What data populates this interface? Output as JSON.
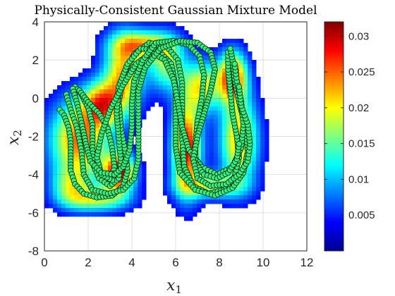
{
  "chart_data": {
    "type": "scatter",
    "title": "Physically-Consistent Gaussian Mixture Model",
    "xlabel": "x",
    "xlabel_sub": "1",
    "ylabel": "x",
    "ylabel_sub": "2",
    "xlim": [
      0,
      12
    ],
    "ylim": [
      -8,
      4
    ],
    "xticks": [
      "0",
      "2",
      "4",
      "6",
      "8",
      "10",
      "12"
    ],
    "yticks": [
      "4",
      "2",
      "0",
      "-2",
      "-4",
      "-6",
      "-8"
    ],
    "grid": true,
    "colormap": "jet",
    "colorbar": {
      "range": [
        0,
        0.032
      ],
      "ticks": [
        "0.005",
        "0.01",
        "0.015",
        "0.02",
        "0.025",
        "0.03"
      ]
    },
    "density_components": [
      {
        "mx": 1.6,
        "my": -2.2,
        "sx": 0.9,
        "sy": 1.4,
        "w": 0.8
      },
      {
        "mx": 2.6,
        "my": -0.3,
        "sx": 0.6,
        "sy": 0.8,
        "w": 0.7
      },
      {
        "mx": 3.4,
        "my": -3.9,
        "sx": 0.5,
        "sy": 0.7,
        "w": 1.0
      },
      {
        "mx": 2.4,
        "my": -5.3,
        "sx": 1.0,
        "sy": 0.45,
        "w": 0.5
      },
      {
        "mx": 3.6,
        "my": 1.2,
        "sx": 0.6,
        "sy": 1.4,
        "w": 0.7
      },
      {
        "mx": 4.5,
        "my": 2.8,
        "sx": 0.9,
        "sy": 0.5,
        "w": 0.6
      },
      {
        "mx": 5.6,
        "my": 1.8,
        "sx": 0.6,
        "sy": 1.0,
        "w": 0.5
      },
      {
        "mx": 6.5,
        "my": -2.6,
        "sx": 0.45,
        "sy": 1.6,
        "w": 0.95
      },
      {
        "mx": 7.2,
        "my": 0.6,
        "sx": 0.6,
        "sy": 0.9,
        "w": 0.6
      },
      {
        "mx": 7.6,
        "my": -4.6,
        "sx": 1.0,
        "sy": 0.45,
        "w": 0.5
      },
      {
        "mx": 8.6,
        "my": 1.1,
        "sx": 0.45,
        "sy": 0.9,
        "w": 0.9
      },
      {
        "mx": 8.9,
        "my": -2.2,
        "sx": 0.6,
        "sy": 1.6,
        "w": 0.7
      },
      {
        "mx": 1.2,
        "my": -4.6,
        "sx": 0.6,
        "sy": 0.7,
        "w": 0.4
      }
    ],
    "series": [
      {
        "points": [
          [
            0.7,
            -0.6
          ],
          [
            0.9,
            -0.9
          ],
          [
            1.1,
            -1.5
          ],
          [
            1.2,
            -2.2
          ],
          [
            1.2,
            -3.0
          ],
          [
            1.2,
            -3.8
          ],
          [
            1.4,
            -4.5
          ],
          [
            1.8,
            -5.0
          ],
          [
            2.4,
            -5.2
          ],
          [
            3.1,
            -5.1
          ],
          [
            3.6,
            -4.6
          ],
          [
            3.8,
            -3.8
          ],
          [
            3.7,
            -2.8
          ],
          [
            3.5,
            -1.6
          ],
          [
            3.4,
            -0.2
          ],
          [
            3.6,
            1.2
          ],
          [
            4.1,
            2.3
          ],
          [
            4.8,
            2.9
          ],
          [
            5.6,
            2.7
          ],
          [
            6.1,
            2.0
          ],
          [
            6.3,
            0.8
          ],
          [
            6.3,
            -0.7
          ],
          [
            6.3,
            -2.2
          ],
          [
            6.4,
            -3.6
          ],
          [
            6.8,
            -4.6
          ],
          [
            7.5,
            -5.0
          ],
          [
            8.2,
            -4.8
          ],
          [
            8.7,
            -4.1
          ],
          [
            8.9,
            -3.1
          ],
          [
            8.8,
            -2.0
          ],
          [
            8.6,
            -0.8
          ],
          [
            8.5,
            0.4
          ],
          [
            8.4,
            1.5
          ],
          [
            8.4,
            2.4
          ]
        ]
      },
      {
        "points": [
          [
            1.4,
            0.6
          ],
          [
            1.7,
            0.2
          ],
          [
            2.0,
            -0.5
          ],
          [
            2.2,
            -1.4
          ],
          [
            2.2,
            -2.4
          ],
          [
            2.2,
            -3.4
          ],
          [
            2.5,
            -4.2
          ],
          [
            3.0,
            -4.6
          ],
          [
            3.4,
            -4.2
          ],
          [
            3.5,
            -3.3
          ],
          [
            3.4,
            -2.1
          ],
          [
            3.3,
            -0.8
          ],
          [
            3.4,
            0.6
          ],
          [
            3.8,
            1.8
          ],
          [
            4.4,
            2.6
          ],
          [
            5.2,
            2.5
          ],
          [
            5.8,
            1.8
          ],
          [
            6.0,
            0.6
          ],
          [
            6.0,
            -0.9
          ],
          [
            6.0,
            -2.5
          ],
          [
            6.2,
            -3.9
          ],
          [
            6.9,
            -4.8
          ],
          [
            7.8,
            -5.1
          ],
          [
            8.6,
            -4.7
          ],
          [
            9.1,
            -3.9
          ],
          [
            9.3,
            -2.8
          ],
          [
            9.2,
            -1.5
          ],
          [
            8.9,
            -0.2
          ],
          [
            8.7,
            1.0
          ],
          [
            8.6,
            2.0
          ],
          [
            8.5,
            2.6
          ]
        ]
      },
      {
        "points": [
          [
            1.6,
            0.4
          ],
          [
            2.0,
            -0.2
          ],
          [
            2.5,
            -0.8
          ],
          [
            2.9,
            -1.6
          ],
          [
            3.1,
            -2.6
          ],
          [
            3.2,
            -3.6
          ],
          [
            3.1,
            -4.3
          ],
          [
            2.6,
            -4.0
          ],
          [
            2.4,
            -3.1
          ],
          [
            2.6,
            -1.9
          ],
          [
            3.0,
            -0.6
          ],
          [
            3.6,
            0.7
          ],
          [
            4.2,
            1.8
          ],
          [
            4.9,
            2.4
          ],
          [
            5.5,
            2.0
          ],
          [
            5.9,
            1.0
          ],
          [
            6.1,
            -0.2
          ],
          [
            6.3,
            -1.5
          ],
          [
            6.6,
            -2.7
          ],
          [
            7.2,
            -3.6
          ],
          [
            7.9,
            -4.0
          ],
          [
            8.6,
            -3.6
          ],
          [
            9.0,
            -2.6
          ],
          [
            9.1,
            -1.4
          ],
          [
            9.0,
            -0.2
          ],
          [
            8.8,
            0.9
          ],
          [
            8.7,
            1.8
          ]
        ]
      },
      {
        "points": [
          [
            1.3,
            0.5
          ],
          [
            1.5,
            -0.3
          ],
          [
            1.7,
            -1.3
          ],
          [
            1.9,
            -2.4
          ],
          [
            2.1,
            -3.3
          ],
          [
            2.6,
            -3.9
          ],
          [
            3.2,
            -4.0
          ],
          [
            3.6,
            -3.6
          ],
          [
            3.9,
            -2.7
          ],
          [
            4.0,
            -1.5
          ],
          [
            4.0,
            -0.3
          ],
          [
            4.1,
            0.9
          ],
          [
            4.5,
            2.0
          ],
          [
            5.1,
            2.9
          ],
          [
            5.9,
            3.0
          ],
          [
            6.6,
            2.8
          ],
          [
            7.1,
            2.2
          ],
          [
            7.3,
            1.2
          ],
          [
            7.2,
            0.0
          ],
          [
            7.0,
            -1.2
          ],
          [
            6.9,
            -2.4
          ],
          [
            6.9,
            -3.4
          ],
          [
            7.3,
            -4.0
          ],
          [
            7.9,
            -4.2
          ],
          [
            8.4,
            -3.9
          ],
          [
            8.8,
            -3.2
          ],
          [
            8.9,
            -2.4
          ]
        ]
      },
      {
        "points": [
          [
            1.0,
            0.2
          ],
          [
            1.2,
            -0.6
          ],
          [
            1.5,
            -1.6
          ],
          [
            1.7,
            -2.8
          ],
          [
            1.8,
            -4.0
          ],
          [
            2.2,
            -4.8
          ],
          [
            2.9,
            -5.0
          ],
          [
            3.6,
            -4.8
          ],
          [
            4.1,
            -4.2
          ],
          [
            4.3,
            -3.2
          ],
          [
            4.3,
            -2.0
          ],
          [
            4.3,
            -0.8
          ],
          [
            4.3,
            0.4
          ],
          [
            4.6,
            1.6
          ],
          [
            5.3,
            2.6
          ],
          [
            6.2,
            3.0
          ],
          [
            7.0,
            2.9
          ],
          [
            7.6,
            2.4
          ],
          [
            7.8,
            1.5
          ],
          [
            7.6,
            0.4
          ],
          [
            7.3,
            -0.8
          ],
          [
            7.0,
            -2.0
          ],
          [
            6.8,
            -3.2
          ],
          [
            7.0,
            -4.2
          ],
          [
            7.6,
            -4.6
          ],
          [
            8.3,
            -4.5
          ],
          [
            8.9,
            -4.0
          ],
          [
            9.3,
            -3.3
          ],
          [
            9.4,
            -2.4
          ],
          [
            9.3,
            -1.4
          ],
          [
            9.0,
            -0.4
          ],
          [
            8.9,
            0.6
          ]
        ]
      }
    ]
  }
}
